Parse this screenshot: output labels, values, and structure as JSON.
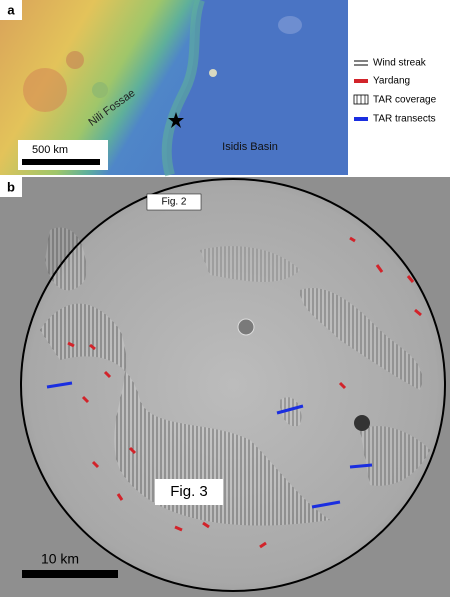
{
  "panel_a": {
    "label": "a",
    "place_names": [
      "Nili Fossae",
      "Isidis Basin"
    ],
    "scale_bar": "500 km"
  },
  "legend": [
    "Wind streak",
    "Yardang",
    "TAR coverage",
    "TAR transects"
  ],
  "panel_b": {
    "label": "b",
    "callouts": [
      "Fig. 2",
      "Fig. 3"
    ],
    "scale_bar": "10 km"
  }
}
